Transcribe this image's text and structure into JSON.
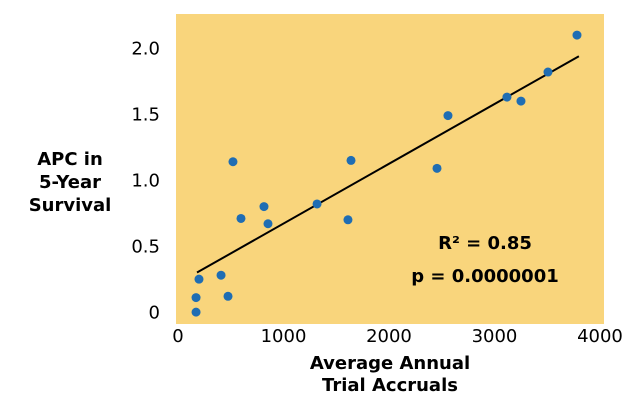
{
  "chart_data": {
    "type": "scatter",
    "x_label": [
      "Average Annual",
      "Trial Accruals"
    ],
    "y_label": [
      "APC in",
      "5-Year",
      "Survival"
    ],
    "x": [
      171,
      171,
      199,
      408,
      474,
      521,
      597,
      815,
      853,
      1318,
      1611,
      1640,
      2455,
      2559,
      3118,
      3251,
      3507,
      3782
    ],
    "y": [
      0.01,
      0.12,
      0.26,
      0.29,
      0.13,
      1.15,
      0.72,
      0.81,
      0.68,
      0.83,
      0.71,
      1.16,
      1.1,
      1.5,
      1.64,
      1.61,
      1.83,
      2.11
    ],
    "color": "#1f6db3",
    "fit_line": {
      "x": [
        180,
        3800
      ],
      "y": [
        0.31,
        1.95
      ],
      "color": "#000000"
    },
    "annotations": [
      "R² = 0.85",
      "p = 0.0000001"
    ],
    "background": "#f9d57c",
    "xlim": [
      -19,
      4038
    ],
    "ylim": [
      -0.08,
      2.27
    ],
    "xticks": [
      0,
      1000,
      2000,
      3000,
      4000
    ],
    "yticks": [
      0,
      0.5,
      {
        "value": 1,
        "label": "1.0"
      },
      1.5,
      {
        "value": 2,
        "label": "2.0"
      }
    ]
  }
}
